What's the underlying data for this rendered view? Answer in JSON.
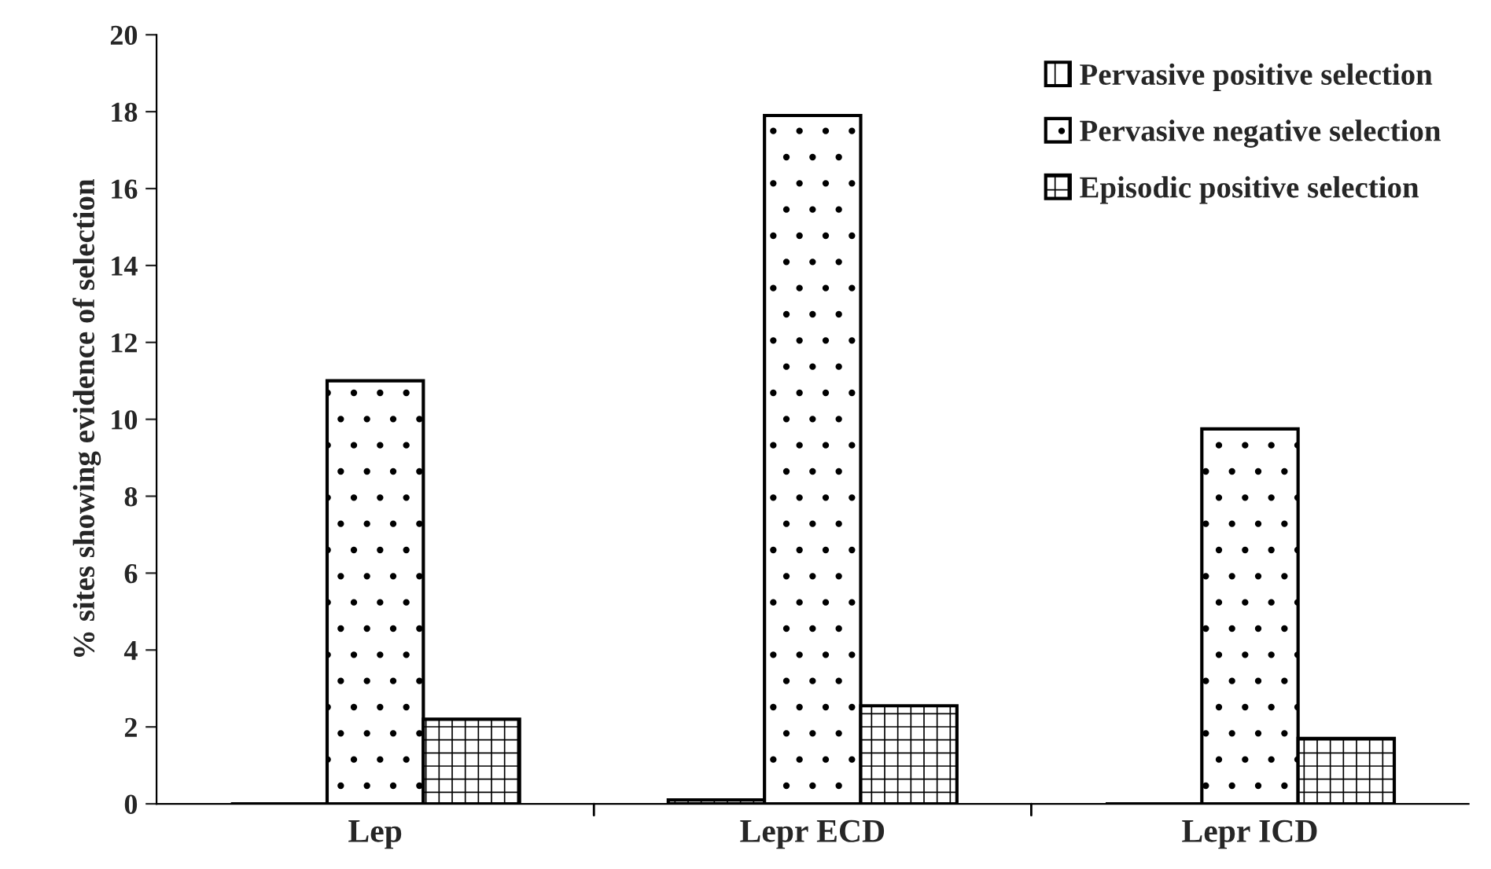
{
  "chart_data": {
    "type": "bar",
    "ylabel": "% sites showing evidence of selection",
    "categories": [
      "Lep",
      "Lepr ECD",
      "Lepr ICD"
    ],
    "series": [
      {
        "name": "Pervasive positive selection",
        "values": [
          0,
          0.1,
          0
        ]
      },
      {
        "name": "Pervasive negative selection",
        "values": [
          11.0,
          17.9,
          9.75
        ]
      },
      {
        "name": "Episodic positive selection",
        "values": [
          2.2,
          2.55,
          1.7
        ]
      }
    ],
    "ylim": [
      0,
      20
    ],
    "yticks": [
      0,
      2,
      4,
      6,
      8,
      10,
      12,
      14,
      16,
      18,
      20
    ],
    "grid": false,
    "legend": "top right"
  }
}
